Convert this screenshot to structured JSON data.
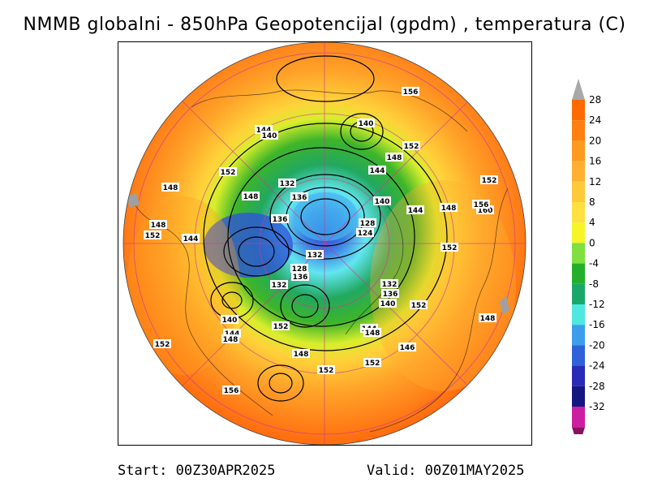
{
  "title": "NMMB globalni - 850hPa Geopotencijal (gpdm) , temperatura (C)",
  "footer": {
    "start": "Start: 00Z30APR2025",
    "valid": "Valid: 00Z01MAY2025"
  },
  "colorbar": {
    "levels": [
      "28",
      "24",
      "20",
      "16",
      "12",
      "8",
      "4",
      "0",
      "-4",
      "-8",
      "-12",
      "-16",
      "-20",
      "-24",
      "-28",
      "-32"
    ],
    "colors": [
      "#ff6a00",
      "#ff7f10",
      "#ff9a20",
      "#ffb030",
      "#ffca3a",
      "#ffe040",
      "#f5f527",
      "#7fe040",
      "#22b02a",
      "#1aa86a",
      "#4ee8e0",
      "#3c9eea",
      "#2f62d8",
      "#2a2ab8",
      "#161680",
      "#cc1ea0"
    ],
    "top_arrow_color": "#a8a8a8",
    "bottom_arrow_color": "#8a1060"
  },
  "contour_labels": [
    {
      "value": "156",
      "pos": "north"
    },
    {
      "value": "140",
      "pos": "north-center"
    },
    {
      "value": "144",
      "pos": "northwest"
    },
    {
      "value": "140",
      "pos": "northwest"
    },
    {
      "value": "152",
      "pos": "north-east"
    },
    {
      "value": "148",
      "pos": "north-east"
    },
    {
      "value": "144",
      "pos": "north-east"
    },
    {
      "value": "152",
      "pos": "east"
    },
    {
      "value": "152",
      "pos": "west"
    },
    {
      "value": "148",
      "pos": "west"
    },
    {
      "value": "132",
      "pos": "center-north"
    },
    {
      "value": "136",
      "pos": "center-north"
    },
    {
      "value": "148",
      "pos": "west"
    },
    {
      "value": "140",
      "pos": "center"
    },
    {
      "value": "144",
      "pos": "east"
    },
    {
      "value": "148",
      "pos": "east"
    },
    {
      "value": "160",
      "pos": "far-east"
    },
    {
      "value": "156",
      "pos": "far-east"
    },
    {
      "value": "136",
      "pos": "center"
    },
    {
      "value": "128",
      "pos": "center"
    },
    {
      "value": "124",
      "pos": "center"
    },
    {
      "value": "148",
      "pos": "far-west"
    },
    {
      "value": "152",
      "pos": "far-west"
    },
    {
      "value": "144",
      "pos": "west"
    },
    {
      "value": "132",
      "pos": "center"
    },
    {
      "value": "152",
      "pos": "east"
    },
    {
      "value": "128",
      "pos": "center"
    },
    {
      "value": "136",
      "pos": "center"
    },
    {
      "value": "132",
      "pos": "center"
    },
    {
      "value": "132",
      "pos": "center-south"
    },
    {
      "value": "136",
      "pos": "center-south"
    },
    {
      "value": "140",
      "pos": "center-south"
    },
    {
      "value": "152",
      "pos": "south-east"
    },
    {
      "value": "140",
      "pos": "south-west"
    },
    {
      "value": "144",
      "pos": "south-west"
    },
    {
      "value": "148",
      "pos": "south-west"
    },
    {
      "value": "152",
      "pos": "south"
    },
    {
      "value": "144",
      "pos": "south"
    },
    {
      "value": "148",
      "pos": "south"
    },
    {
      "value": "148",
      "pos": "south-east"
    },
    {
      "value": "146",
      "pos": "south-east"
    },
    {
      "value": "152",
      "pos": "far-southwest"
    },
    {
      "value": "148",
      "pos": "south"
    },
    {
      "value": "152",
      "pos": "south"
    },
    {
      "value": "152",
      "pos": "south"
    },
    {
      "value": "156",
      "pos": "south"
    }
  ]
}
